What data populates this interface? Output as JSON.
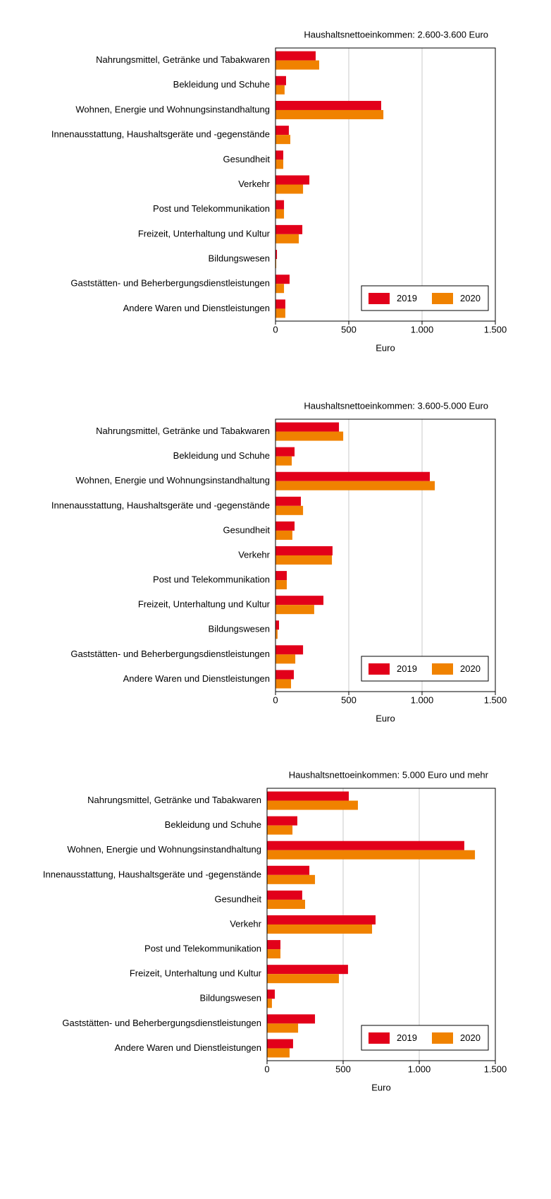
{
  "chart_data": [
    {
      "type": "barh",
      "title": "Haushaltsnettoeinkommen: 2.600-3.600 Euro",
      "x_label": "Euro",
      "categories": [
        "Nahrungsmittel, Getränke und Tabakwaren",
        "Bekleidung und Schuhe",
        "Wohnen, Energie und Wohnungsinstandhaltung",
        "Innenausstattung, Haushaltsgeräte und -gegenstände",
        "Gesundheit",
        "Verkehr",
        "Post und Telekommunikation",
        "Freizeit, Unterhaltung und Kultur",
        "Bildungswesen",
        "Gaststätten- und Beherbergungsdienstleistungen",
        "Andere Waren und Dienstleistungen"
      ],
      "series": [
        {
          "name": "2019",
          "color": "#e2001a",
          "values": [
            274,
            72,
            721,
            91,
            53,
            231,
            58,
            183,
            10,
            96,
            67
          ]
        },
        {
          "name": "2020",
          "color": "#f08200",
          "values": [
            298,
            62,
            736,
            101,
            53,
            188,
            58,
            159,
            5,
            58,
            67
          ]
        }
      ],
      "xlim": [
        0,
        1500
      ],
      "xticks": [
        0,
        500,
        {
          "value": 1000,
          "label": "1.000"
        },
        {
          "value": 1500,
          "label": "1.500"
        }
      ],
      "grid": true,
      "legend": "lower right"
    },
    {
      "type": "barh",
      "title": "Haushaltsnettoeinkommen: 3.600-5.000 Euro",
      "x_label": "Euro",
      "categories": [
        "Nahrungsmittel, Getränke und Tabakwaren",
        "Bekleidung und Schuhe",
        "Wohnen, Energie und Wohnungsinstandhaltung",
        "Innenausstattung, Haushaltsgeräte und -gegenstände",
        "Gesundheit",
        "Verkehr",
        "Post und Telekommunikation",
        "Freizeit, Unterhaltung und Kultur",
        "Bildungswesen",
        "Gaststätten- und Beherbergungsdienstleistungen",
        "Andere Waren und Dienstleistungen"
      ],
      "series": [
        {
          "name": "2019",
          "color": "#e2001a",
          "values": [
            433,
            130,
            1053,
            173,
            130,
            389,
            77,
            327,
            24,
            188,
            125
          ]
        },
        {
          "name": "2020",
          "color": "#f08200",
          "values": [
            462,
            111,
            1087,
            188,
            115,
            385,
            77,
            264,
            14,
            135,
            106
          ]
        }
      ],
      "xlim": [
        0,
        1500
      ],
      "xticks": [
        0,
        500,
        {
          "value": 1000,
          "label": "1.000"
        },
        {
          "value": 1500,
          "label": "1.500"
        }
      ],
      "grid": true,
      "legend": "lower right"
    },
    {
      "type": "barh",
      "title": "Haushaltsnettoeinkommen: 5.000 Euro und mehr",
      "x_label": "Euro",
      "categories": [
        "Nahrungsmittel, Getränke und Tabakwaren",
        "Bekleidung und Schuhe",
        "Wohnen, Energie und Wohnungsinstandhaltung",
        "Innenausstattung, Haushaltsgeräte und -gegenstände",
        "Gesundheit",
        "Verkehr",
        "Post und Telekommunikation",
        "Freizeit, Unterhaltung und Kultur",
        "Bildungswesen",
        "Gaststätten- und Beherbergungsdienstleistungen",
        "Andere Waren und Dienstleistungen"
      ],
      "series": [
        {
          "name": "2019",
          "color": "#e2001a",
          "values": [
            537,
            199,
            1296,
            278,
            231,
            713,
            88,
            532,
            51,
            315,
            171
          ]
        },
        {
          "name": "2020",
          "color": "#f08200",
          "values": [
            597,
            167,
            1366,
            315,
            250,
            690,
            88,
            472,
            32,
            204,
            148
          ]
        }
      ],
      "xlim": [
        0,
        1500
      ],
      "xticks": [
        0,
        500,
        {
          "value": 1000,
          "label": "1.000"
        },
        {
          "value": 1500,
          "label": "1.500"
        }
      ],
      "grid": true,
      "legend": "lower right"
    }
  ]
}
